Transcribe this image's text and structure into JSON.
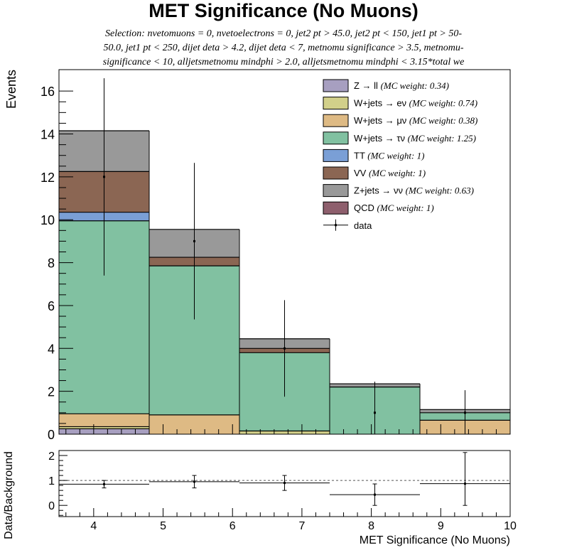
{
  "chart_data": [
    {
      "type": "bar",
      "title": "MET Significance (No Muons)",
      "subtitle": "Selection: nvetomuons = 0, nvetoelectrons = 0, jet2 pt > 45.0, jet2 pt < 150, jet1 pt > 50-50.0, jet1 pt < 250, dijet deta > 4.2, dijet deta < 7, metnomu significance > 3.5, metnomu-significance < 10, alljetsmetnomu mindphi > 2.0, alljetsmetnomu mindphi < 3.15*total we",
      "subtitle_lines": [
        "Selection: nvetomuons = 0, nvetoelectrons = 0, jet2 pt > 45.0, jet2 pt < 150, jet1 pt > 50-",
        "50.0, jet1 pt < 250, dijet deta > 4.2, dijet deta < 7, metnomu significance > 3.5, metnomu-",
        "significance < 10, alljetsmetnomu mindphi > 2.0, alljetsmetnomu mindphi < 3.15*total we"
      ],
      "ylabel": "Events",
      "xlim": [
        3.5,
        10
      ],
      "ylim": [
        0,
        17
      ],
      "yticks": [
        0,
        2,
        4,
        6,
        8,
        10,
        12,
        14,
        16
      ],
      "bin_edges": [
        3.5,
        4.8,
        6.1,
        7.4,
        8.7,
        10
      ],
      "stacked": true,
      "series": [
        {
          "name": "Z → ll",
          "weight": "(MC weight: 0.34)",
          "color": "#a79fc0",
          "values": [
            0.25,
            0.0,
            0.0,
            0.0,
            0.0
          ]
        },
        {
          "name": "W+jets → eν",
          "weight": "(MC weight: 0.74)",
          "color": "#d2d08a",
          "values": [
            0.1,
            0.0,
            0.15,
            0.0,
            0.0
          ]
        },
        {
          "name": "W+jets → μν",
          "weight": "(MC weight: 0.38)",
          "color": "#deba84",
          "values": [
            0.6,
            0.9,
            0.0,
            0.0,
            0.65
          ]
        },
        {
          "name": "W+jets → τν",
          "weight": "(MC weight: 1.25)",
          "color": "#81c1a1",
          "values": [
            9.0,
            6.95,
            3.65,
            2.2,
            0.35
          ]
        },
        {
          "name": "TT",
          "weight": "(MC weight: 1)",
          "color": "#7a9fd6",
          "values": [
            0.4,
            0.0,
            0.0,
            0.0,
            0.0
          ]
        },
        {
          "name": "VV",
          "weight": "(MC weight: 1)",
          "color": "#8b6653",
          "values": [
            1.9,
            0.4,
            0.2,
            0.0,
            0.0
          ]
        },
        {
          "name": "Z+jets → νν",
          "weight": "(MC weight: 0.63)",
          "color": "#999999",
          "values": [
            1.9,
            1.3,
            0.45,
            0.15,
            0.15
          ]
        },
        {
          "name": "QCD",
          "weight": "(MC weight: 1)",
          "color": "#8e5f6d",
          "values": [
            0.0,
            0.0,
            0.0,
            0.0,
            0.0
          ]
        }
      ],
      "data_series": {
        "name": "data",
        "x": [
          4.15,
          5.45,
          6.75,
          8.05,
          9.35
        ],
        "y": [
          12,
          9,
          4,
          1,
          1
        ],
        "err_low": [
          4.6,
          3.65,
          2.25,
          1.0,
          1.0
        ],
        "err_high": [
          4.6,
          3.65,
          2.25,
          1.45,
          1.05
        ]
      },
      "legend_position": "top-right",
      "grid": false
    },
    {
      "type": "scatter",
      "ylabel": "Data/Background",
      "xlabel": "MET Significance (No Muons)",
      "xlim": [
        3.5,
        10
      ],
      "ylim": [
        -0.45,
        2.2
      ],
      "xticks": [
        4,
        5,
        6,
        7,
        8,
        9,
        10
      ],
      "yticks": [
        0,
        1,
        2
      ],
      "reference_line": 1,
      "x": [
        4.15,
        5.45,
        6.75,
        8.05,
        9.35
      ],
      "y": [
        0.85,
        0.95,
        0.9,
        0.43,
        0.87
      ],
      "x_err": 0.65,
      "err_low": [
        0.15,
        0.25,
        0.3,
        0.43,
        0.87
      ],
      "err_high": [
        0.15,
        0.25,
        0.3,
        0.43,
        1.25
      ]
    }
  ]
}
